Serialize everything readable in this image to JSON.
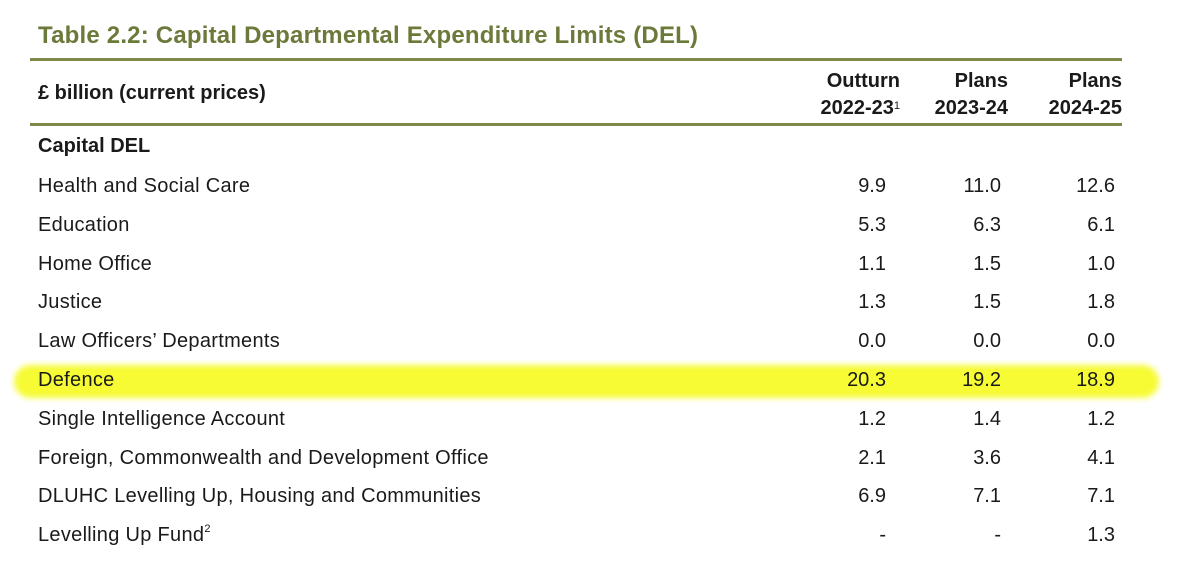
{
  "title": "Table 2.2: Capital Departmental Expenditure Limits (DEL)",
  "header": {
    "unit_label": "£ billion (current prices)",
    "columns": [
      {
        "line1": "Outturn",
        "line2": "2022-23",
        "sup": "1"
      },
      {
        "line1": "Plans",
        "line2": "2023-24",
        "sup": ""
      },
      {
        "line1": "Plans",
        "line2": "2024-25",
        "sup": ""
      }
    ]
  },
  "section_title": "Capital DEL",
  "highlight_color": "#f6fb2a",
  "accent_color": "#6b7a3a",
  "rows": [
    {
      "label": "Health and Social Care",
      "sup": "",
      "values": [
        "9.9",
        "11.0",
        "12.6"
      ],
      "highlighted": false
    },
    {
      "label": "Education",
      "sup": "",
      "values": [
        "5.3",
        "6.3",
        "6.1"
      ],
      "highlighted": false
    },
    {
      "label": "Home Office",
      "sup": "",
      "values": [
        "1.1",
        "1.5",
        "1.0"
      ],
      "highlighted": false
    },
    {
      "label": "Justice",
      "sup": "",
      "values": [
        "1.3",
        "1.5",
        "1.8"
      ],
      "highlighted": false
    },
    {
      "label": "Law Officers’ Departments",
      "sup": "",
      "values": [
        "0.0",
        "0.0",
        "0.0"
      ],
      "highlighted": false
    },
    {
      "label": "Defence",
      "sup": "",
      "values": [
        "20.3",
        "19.2",
        "18.9"
      ],
      "highlighted": true
    },
    {
      "label": "Single Intelligence Account",
      "sup": "",
      "values": [
        "1.2",
        "1.4",
        "1.2"
      ],
      "highlighted": false
    },
    {
      "label": "Foreign, Commonwealth and Development Office",
      "sup": "",
      "values": [
        "2.1",
        "3.6",
        "4.1"
      ],
      "highlighted": false
    },
    {
      "label": "DLUHC Levelling Up, Housing and Communities",
      "sup": "",
      "values": [
        "6.9",
        "7.1",
        "7.1"
      ],
      "highlighted": false
    },
    {
      "label": "Levelling Up Fund",
      "sup": "2",
      "values": [
        "-",
        "-",
        "1.3"
      ],
      "highlighted": false
    }
  ]
}
